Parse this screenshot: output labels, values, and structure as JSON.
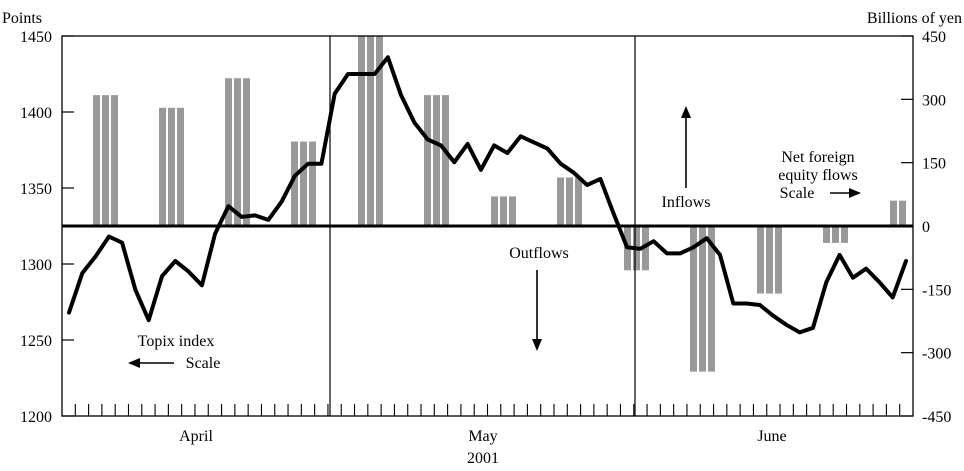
{
  "chart_data": {
    "type": "bar+line",
    "left_axis": {
      "label": "Points",
      "ylim": [
        1200,
        1450
      ],
      "ticks": [
        "1450",
        "1400",
        "1350",
        "1300",
        "1250",
        "1200"
      ]
    },
    "right_axis": {
      "label": "Billions of yen",
      "ylim": [
        -450,
        450
      ],
      "ticks": [
        "450",
        "300",
        "150",
        "0",
        "-150",
        "-300",
        "-450"
      ]
    },
    "x_categories": [
      "April",
      "May",
      "June"
    ],
    "year_label": "2001",
    "annotations": {
      "inflows": "Inflows",
      "outflows": "Outflows",
      "topix_line1": "Topix index",
      "topix_line2": "Scale",
      "net_line1": "Net foreign",
      "net_line2": "equity flows",
      "net_line3": "Scale"
    },
    "bar_series": {
      "name": "Net foreign equity flows",
      "color": "#999999",
      "values": [
        310,
        280,
        350,
        200,
        450,
        310,
        70,
        115,
        -105,
        -345,
        -160,
        -40,
        60
      ]
    },
    "line_series": {
      "name": "Topix index",
      "color": "#000000",
      "values": [
        1268,
        1294,
        1305,
        1318,
        1314,
        1283,
        1263,
        1292,
        1302,
        1295,
        1286,
        1320,
        1338,
        1331,
        1332,
        1329,
        1341,
        1358,
        1366,
        1366,
        1412,
        1425,
        1425,
        1425,
        1436,
        1411,
        1393,
        1382,
        1378,
        1367,
        1379,
        1362,
        1378,
        1373,
        1384,
        1380,
        1376,
        1366,
        1360,
        1352,
        1356,
        1333,
        1311,
        1310,
        1315,
        1307,
        1307,
        1311,
        1317,
        1306,
        1274,
        1274,
        1273,
        1266,
        1260,
        1255,
        1258,
        1288,
        1306,
        1291,
        1297,
        1288,
        1278,
        1302
      ]
    }
  }
}
